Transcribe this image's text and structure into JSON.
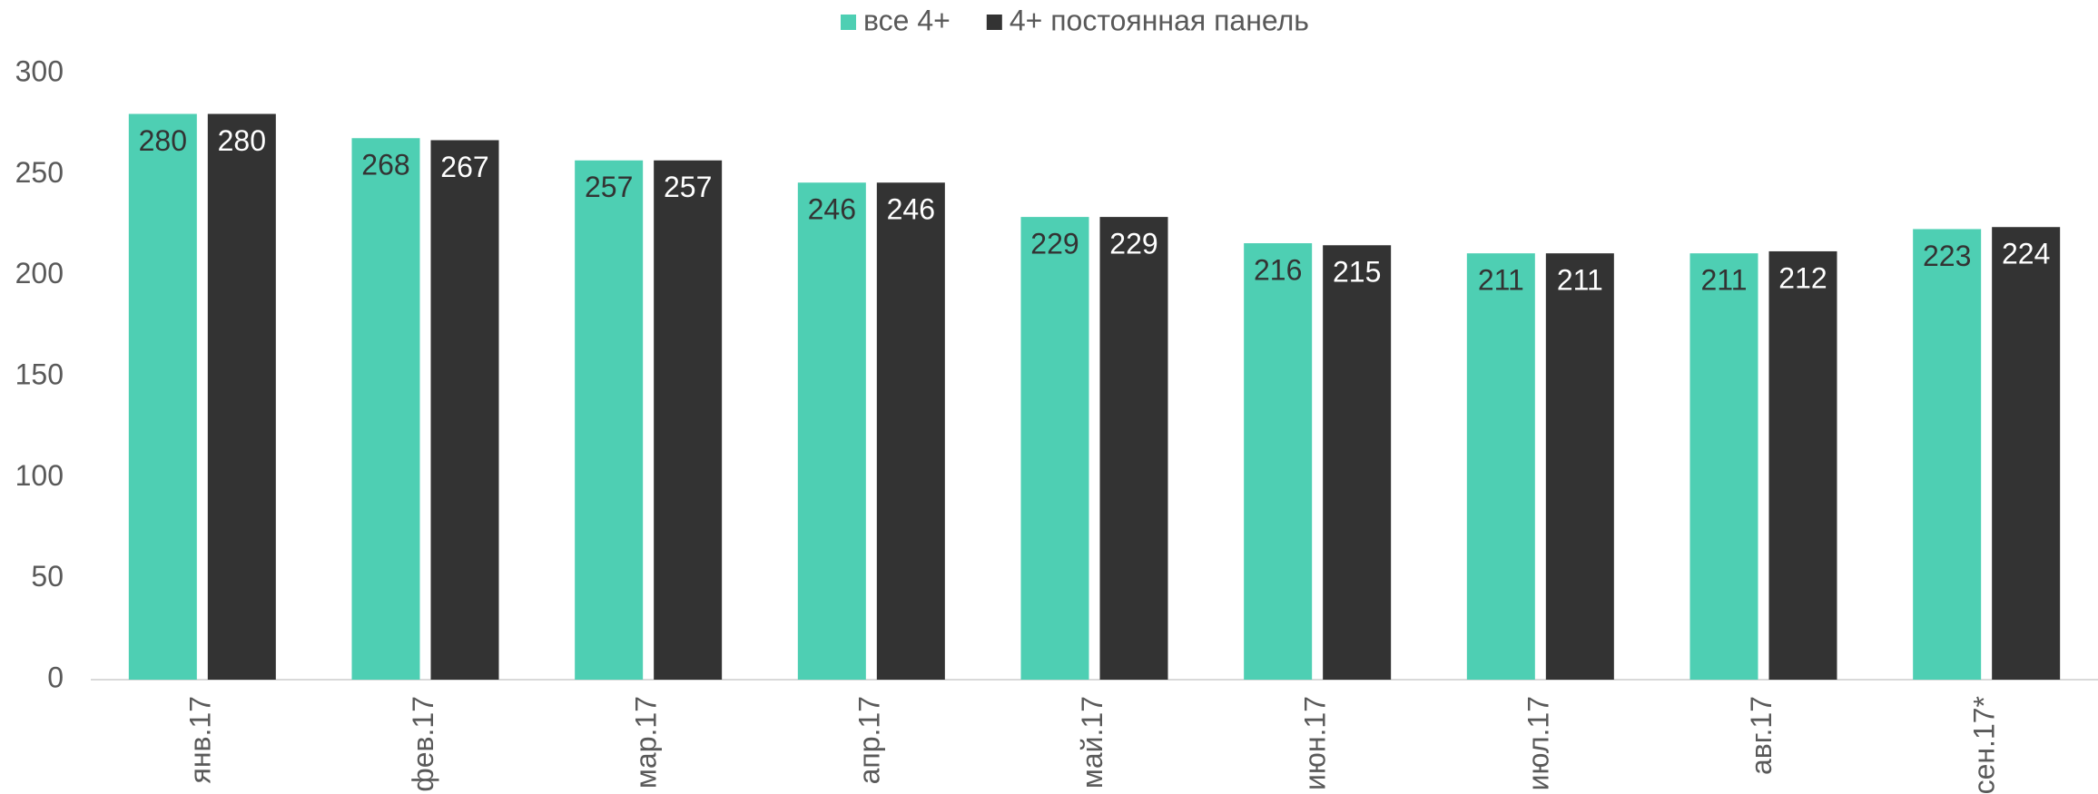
{
  "chart_data": {
    "type": "bar",
    "categories": [
      "янв.17",
      "фев.17",
      "мар.17",
      "апр.17",
      "май.17",
      "июн.17",
      "июл.17",
      "авг.17",
      "сен.17*"
    ],
    "series": [
      {
        "name": "все 4+",
        "color": "#4ecfb3",
        "values": [
          280,
          268,
          257,
          246,
          229,
          216,
          211,
          211,
          223
        ]
      },
      {
        "name": "4+ постоянная панель",
        "color": "#333333",
        "values": [
          280,
          267,
          257,
          246,
          229,
          215,
          211,
          212,
          224
        ]
      }
    ],
    "ylim": [
      0,
      300
    ],
    "yticks": [
      0,
      50,
      100,
      150,
      200,
      250,
      300
    ],
    "grid": false,
    "legend": "top"
  }
}
